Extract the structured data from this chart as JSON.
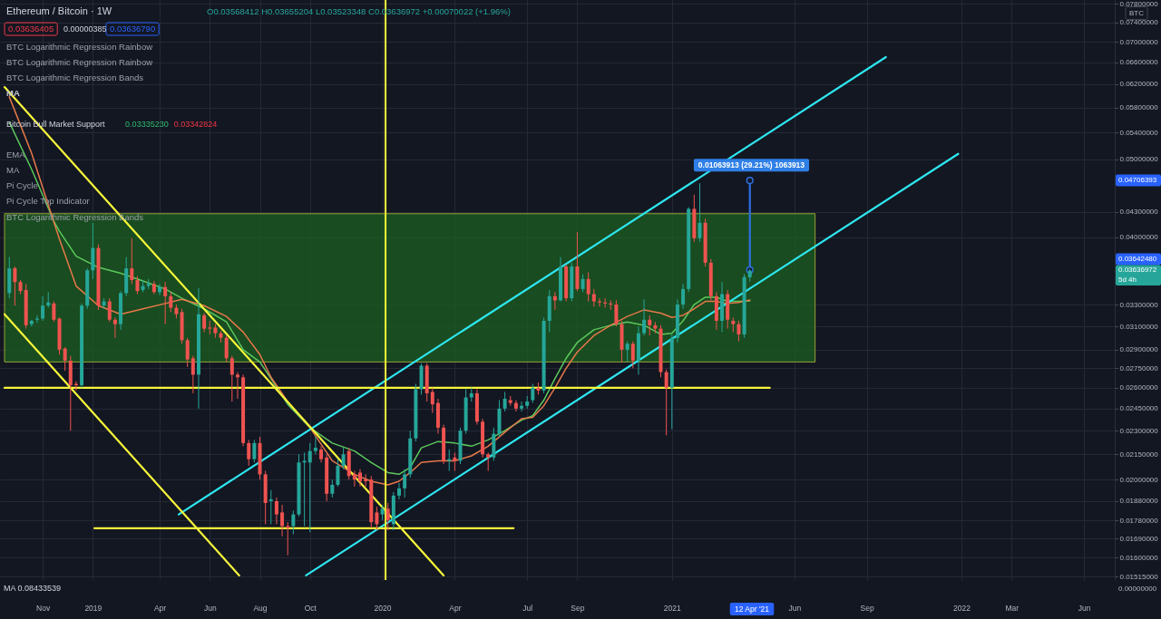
{
  "chart_data": {
    "type": "candlestick",
    "title": "Ethereum / Bitcoin · 1W",
    "x": [
      "2018-09-24",
      "2018-10-01",
      "2018-10-08",
      "2018-10-15",
      "2018-10-22",
      "2018-10-29",
      "2018-11-05",
      "2018-11-12",
      "2018-11-19",
      "2018-11-26",
      "2018-12-03",
      "2018-12-10",
      "2018-12-17",
      "2018-12-24",
      "2018-12-31",
      "2019-01-07",
      "2019-01-14",
      "2019-01-21",
      "2019-01-28",
      "2019-02-04",
      "2019-02-11",
      "2019-02-18",
      "2019-02-25",
      "2019-03-04",
      "2019-03-11",
      "2019-03-18",
      "2019-03-25",
      "2019-04-01",
      "2019-04-08",
      "2019-04-15",
      "2019-04-22",
      "2019-04-29",
      "2019-05-06",
      "2019-05-13",
      "2019-05-20",
      "2019-05-27",
      "2019-06-03",
      "2019-06-10",
      "2019-06-17",
      "2019-06-24",
      "2019-07-01",
      "2019-07-08",
      "2019-07-15",
      "2019-07-22",
      "2019-07-29",
      "2019-08-05",
      "2019-08-12",
      "2019-08-19",
      "2019-08-26",
      "2019-09-02",
      "2019-09-09",
      "2019-09-16",
      "2019-09-23",
      "2019-09-30",
      "2019-10-07",
      "2019-10-14",
      "2019-10-21",
      "2019-10-28",
      "2019-11-04",
      "2019-11-11",
      "2019-11-18",
      "2019-11-25",
      "2019-12-02",
      "2019-12-09",
      "2019-12-16",
      "2019-12-23",
      "2019-12-30",
      "2020-01-06",
      "2020-01-13",
      "2020-01-20",
      "2020-01-27",
      "2020-02-03",
      "2020-02-10",
      "2020-02-17",
      "2020-02-24",
      "2020-03-02",
      "2020-03-09",
      "2020-03-16",
      "2020-03-23",
      "2020-03-30",
      "2020-04-06",
      "2020-04-13",
      "2020-04-20",
      "2020-04-27",
      "2020-05-04",
      "2020-05-11",
      "2020-05-18",
      "2020-05-25",
      "2020-06-01",
      "2020-06-08",
      "2020-06-15",
      "2020-06-22",
      "2020-06-29",
      "2020-07-06",
      "2020-07-13",
      "2020-07-20",
      "2020-07-27",
      "2020-08-03",
      "2020-08-10",
      "2020-08-17",
      "2020-08-24",
      "2020-08-31",
      "2020-09-07",
      "2020-09-14",
      "2020-09-21",
      "2020-09-28",
      "2020-10-05",
      "2020-10-12",
      "2020-10-19",
      "2020-10-26",
      "2020-11-02",
      "2020-11-09",
      "2020-11-16",
      "2020-11-23",
      "2020-11-30",
      "2020-12-07",
      "2020-12-14",
      "2020-12-21",
      "2020-12-28",
      "2021-01-04",
      "2021-01-11",
      "2021-01-18",
      "2021-01-25",
      "2021-02-01",
      "2021-02-08",
      "2021-02-15",
      "2021-02-22",
      "2021-03-01",
      "2021-03-08",
      "2021-03-15",
      "2021-03-22",
      "2021-03-29",
      "2021-04-05",
      "2021-04-12"
    ],
    "ohlc": [
      [
        0.0341,
        0.0378,
        0.0336,
        0.0366
      ],
      [
        0.0366,
        0.0368,
        0.0329,
        0.0352
      ],
      [
        0.0352,
        0.0354,
        0.034,
        0.0343
      ],
      [
        0.0344,
        0.035,
        0.0308,
        0.0311
      ],
      [
        0.0312,
        0.0316,
        0.031,
        0.0315
      ],
      [
        0.0316,
        0.032,
        0.0313,
        0.0317
      ],
      [
        0.0317,
        0.0338,
        0.0315,
        0.0329
      ],
      [
        0.0329,
        0.0342,
        0.0327,
        0.0332
      ],
      [
        0.0331,
        0.0333,
        0.0314,
        0.0316
      ],
      [
        0.0317,
        0.0318,
        0.0286,
        0.029
      ],
      [
        0.0291,
        0.0292,
        0.0273,
        0.0281
      ],
      [
        0.0281,
        0.0285,
        0.023,
        0.0262
      ],
      [
        0.0263,
        0.0265,
        0.0258,
        0.0262
      ],
      [
        0.0262,
        0.0331,
        0.026,
        0.0329
      ],
      [
        0.0329,
        0.0366,
        0.0326,
        0.0364
      ],
      [
        0.0364,
        0.0417,
        0.0355,
        0.0388
      ],
      [
        0.0388,
        0.0392,
        0.0325,
        0.0329
      ],
      [
        0.0329,
        0.0336,
        0.0326,
        0.0333
      ],
      [
        0.0333,
        0.0336,
        0.0314,
        0.0316
      ],
      [
        0.0316,
        0.0318,
        0.03,
        0.0312
      ],
      [
        0.0312,
        0.0343,
        0.0307,
        0.0341
      ],
      [
        0.0341,
        0.0378,
        0.0338,
        0.0366
      ],
      [
        0.0366,
        0.0399,
        0.035,
        0.0354
      ],
      [
        0.0354,
        0.0358,
        0.034,
        0.0343
      ],
      [
        0.0344,
        0.0354,
        0.0342,
        0.0348
      ],
      [
        0.0348,
        0.0355,
        0.0345,
        0.035
      ],
      [
        0.035,
        0.0353,
        0.034,
        0.0342
      ],
      [
        0.0342,
        0.035,
        0.0339,
        0.0347
      ],
      [
        0.0347,
        0.0352,
        0.0312,
        0.0338
      ],
      [
        0.0338,
        0.0342,
        0.0323,
        0.0327
      ],
      [
        0.0327,
        0.033,
        0.0317,
        0.0321
      ],
      [
        0.0323,
        0.0326,
        0.0295,
        0.0298
      ],
      [
        0.0298,
        0.03,
        0.0276,
        0.0282
      ],
      [
        0.0283,
        0.0285,
        0.0256,
        0.027
      ],
      [
        0.027,
        0.0346,
        0.0245,
        0.0321
      ],
      [
        0.032,
        0.0322,
        0.0305,
        0.0308
      ],
      [
        0.0309,
        0.0315,
        0.0303,
        0.0308
      ],
      [
        0.0309,
        0.0312,
        0.03,
        0.0304
      ],
      [
        0.0304,
        0.0306,
        0.0296,
        0.03
      ],
      [
        0.03,
        0.0302,
        0.028,
        0.0283
      ],
      [
        0.0283,
        0.0285,
        0.025,
        0.027
      ],
      [
        0.027,
        0.0272,
        0.0252,
        0.0268
      ],
      [
        0.0268,
        0.027,
        0.022,
        0.0222
      ],
      [
        0.0222,
        0.0224,
        0.0208,
        0.0212
      ],
      [
        0.0212,
        0.0224,
        0.021,
        0.0222
      ],
      [
        0.0222,
        0.0226,
        0.02,
        0.0203
      ],
      [
        0.0203,
        0.0205,
        0.0176,
        0.0187
      ],
      [
        0.0188,
        0.0194,
        0.0176,
        0.0189
      ],
      [
        0.0188,
        0.019,
        0.0176,
        0.0181
      ],
      [
        0.0182,
        0.0186,
        0.017,
        0.0175
      ],
      [
        0.0175,
        0.0177,
        0.0161,
        0.0174
      ],
      [
        0.0175,
        0.0183,
        0.0171,
        0.0181
      ],
      [
        0.0181,
        0.0215,
        0.018,
        0.021
      ],
      [
        0.021,
        0.0216,
        0.0175,
        0.0211
      ],
      [
        0.021,
        0.0222,
        0.0172,
        0.0217
      ],
      [
        0.0217,
        0.0226,
        0.0215,
        0.0219
      ],
      [
        0.0218,
        0.022,
        0.021,
        0.0212
      ],
      [
        0.0213,
        0.0215,
        0.0188,
        0.0192
      ],
      [
        0.0192,
        0.02,
        0.019,
        0.0197
      ],
      [
        0.0197,
        0.0212,
        0.0196,
        0.0208
      ],
      [
        0.0208,
        0.0219,
        0.0206,
        0.0215
      ],
      [
        0.0217,
        0.0219,
        0.02,
        0.0202
      ],
      [
        0.0203,
        0.0205,
        0.0196,
        0.02
      ],
      [
        0.0204,
        0.0206,
        0.0196,
        0.0199
      ],
      [
        0.02,
        0.0203,
        0.0196,
        0.0199
      ],
      [
        0.02,
        0.0202,
        0.0174,
        0.0177
      ],
      [
        0.0182,
        0.0185,
        0.0173,
        0.0176
      ],
      [
        0.0181,
        0.0186,
        0.0178,
        0.0184
      ],
      [
        0.0184,
        0.0187,
        0.0173,
        0.0178
      ],
      [
        0.0176,
        0.0193,
        0.0173,
        0.0191
      ],
      [
        0.0191,
        0.0198,
        0.0189,
        0.0195
      ],
      [
        0.0195,
        0.0206,
        0.019,
        0.0203
      ],
      [
        0.0203,
        0.023,
        0.0201,
        0.0225
      ],
      [
        0.0225,
        0.0263,
        0.0223,
        0.0259
      ],
      [
        0.0259,
        0.0279,
        0.0255,
        0.0277
      ],
      [
        0.0277,
        0.0279,
        0.025,
        0.0256
      ],
      [
        0.0257,
        0.026,
        0.0242,
        0.0248
      ],
      [
        0.0249,
        0.0252,
        0.0228,
        0.0232
      ],
      [
        0.0232,
        0.0234,
        0.0209,
        0.0211
      ],
      [
        0.0211,
        0.0218,
        0.0205,
        0.0212
      ],
      [
        0.0213,
        0.0216,
        0.0205,
        0.0211
      ],
      [
        0.0211,
        0.0232,
        0.0209,
        0.023
      ],
      [
        0.023,
        0.0259,
        0.0228,
        0.0253
      ],
      [
        0.0253,
        0.026,
        0.025,
        0.0256
      ],
      [
        0.0256,
        0.0259,
        0.0234,
        0.0236
      ],
      [
        0.0236,
        0.0238,
        0.0213,
        0.0215
      ],
      [
        0.0215,
        0.0216,
        0.0205,
        0.0213
      ],
      [
        0.0213,
        0.0232,
        0.0211,
        0.0228
      ],
      [
        0.0228,
        0.0251,
        0.0226,
        0.0245
      ],
      [
        0.0245,
        0.0257,
        0.0243,
        0.0252
      ],
      [
        0.0251,
        0.0254,
        0.0247,
        0.0249
      ],
      [
        0.0249,
        0.0251,
        0.0243,
        0.0245
      ],
      [
        0.0245,
        0.025,
        0.0243,
        0.0247
      ],
      [
        0.0247,
        0.0254,
        0.0245,
        0.025
      ],
      [
        0.0251,
        0.0263,
        0.0249,
        0.026
      ],
      [
        0.026,
        0.0264,
        0.0255,
        0.0258
      ],
      [
        0.0258,
        0.0318,
        0.0256,
        0.0315
      ],
      [
        0.0315,
        0.0344,
        0.0305,
        0.0338
      ],
      [
        0.0338,
        0.0342,
        0.0325,
        0.0334
      ],
      [
        0.0334,
        0.0378,
        0.0333,
        0.0368
      ],
      [
        0.0368,
        0.037,
        0.0333,
        0.0336
      ],
      [
        0.0336,
        0.0372,
        0.0333,
        0.0368
      ],
      [
        0.0368,
        0.0406,
        0.0343,
        0.0345
      ],
      [
        0.0345,
        0.036,
        0.0342,
        0.0355
      ],
      [
        0.0355,
        0.0362,
        0.0333,
        0.034
      ],
      [
        0.034,
        0.0345,
        0.0328,
        0.0333
      ],
      [
        0.0333,
        0.0336,
        0.0328,
        0.0332
      ],
      [
        0.0332,
        0.0336,
        0.0327,
        0.0331
      ],
      [
        0.0331,
        0.0334,
        0.0325,
        0.033
      ],
      [
        0.033,
        0.0334,
        0.031,
        0.0312
      ],
      [
        0.0312,
        0.0315,
        0.028,
        0.029
      ],
      [
        0.029,
        0.0297,
        0.028,
        0.0295
      ],
      [
        0.0295,
        0.0297,
        0.0275,
        0.0281
      ],
      [
        0.0281,
        0.031,
        0.027,
        0.0304
      ],
      [
        0.0304,
        0.0335,
        0.0302,
        0.0316
      ],
      [
        0.0316,
        0.032,
        0.0302,
        0.0311
      ],
      [
        0.0311,
        0.0314,
        0.0304,
        0.0308
      ],
      [
        0.0308,
        0.0311,
        0.0268,
        0.0272
      ],
      [
        0.0272,
        0.0274,
        0.0227,
        0.026
      ],
      [
        0.026,
        0.0303,
        0.0231,
        0.03
      ],
      [
        0.03,
        0.0335,
        0.0296,
        0.033
      ],
      [
        0.033,
        0.035,
        0.0326,
        0.0345
      ],
      [
        0.0345,
        0.0436,
        0.0342,
        0.0434
      ],
      [
        0.0434,
        0.0452,
        0.0395,
        0.0399
      ],
      [
        0.0399,
        0.0467,
        0.0395,
        0.0417
      ],
      [
        0.0417,
        0.0422,
        0.0368,
        0.0372
      ],
      [
        0.0372,
        0.0376,
        0.0334,
        0.0338
      ],
      [
        0.0338,
        0.0342,
        0.0307,
        0.0315
      ],
      [
        0.0315,
        0.0352,
        0.0305,
        0.034
      ],
      [
        0.034,
        0.0344,
        0.0308,
        0.0316
      ],
      [
        0.0315,
        0.0318,
        0.0305,
        0.0312
      ],
      [
        0.0312,
        0.0315,
        0.0297,
        0.0303
      ],
      [
        0.0303,
        0.036,
        0.03,
        0.0357
      ],
      [
        0.03568412,
        0.03655204,
        0.03523348,
        0.03636972
      ]
    ],
    "colors": [
      "#26a69a",
      "#ef5350",
      "#ef5350",
      "#ef5350",
      "#26a69a",
      "#26a69a",
      "#26a69a",
      "#26a69a",
      "#ef5350",
      "#ef5350",
      "#ef5350",
      "#ef5350",
      "#ef5350",
      "#26a69a",
      "#26a69a",
      "#26a69a",
      "#ef5350",
      "#26a69a",
      "#ef5350",
      "#ef5350",
      "#26a69a",
      "#26a69a",
      "#ef5350",
      "#ef5350",
      "#26a69a",
      "#26a69a",
      "#ef5350",
      "#26a69a",
      "#ef5350",
      "#ef5350",
      "#ef5350",
      "#ef5350",
      "#ef5350",
      "#ef5350",
      "#26a69a",
      "#ef5350",
      "#ef5350",
      "#ef5350",
      "#ef5350",
      "#ef5350",
      "#ef5350",
      "#ef5350",
      "#ef5350",
      "#ef5350",
      "#26a69a",
      "#ef5350",
      "#ef5350",
      "#26a69a",
      "#ef5350",
      "#ef5350",
      "#ef5350",
      "#26a69a",
      "#26a69a",
      "#26a69a",
      "#26a69a",
      "#26a69a",
      "#ef5350",
      "#ef5350",
      "#26a69a",
      "#26a69a",
      "#26a69a",
      "#ef5350",
      "#ef5350",
      "#ef5350",
      "#ef5350",
      "#ef5350",
      "#ef5350",
      "#26a69a",
      "#ef5350",
      "#26a69a",
      "#26a69a",
      "#26a69a",
      "#26a69a",
      "#26a69a",
      "#26a69a",
      "#ef5350",
      "#ef5350",
      "#ef5350",
      "#ef5350",
      "#26a69a",
      "#ef5350",
      "#26a69a",
      "#26a69a",
      "#26a69a",
      "#ef5350",
      "#ef5350",
      "#ef5350",
      "#26a69a",
      "#26a69a",
      "#26a69a",
      "#ef5350",
      "#ef5350",
      "#26a69a",
      "#26a69a",
      "#26a69a",
      "#ef5350",
      "#26a69a",
      "#26a69a",
      "#ef5350",
      "#26a69a",
      "#ef5350",
      "#26a69a",
      "#ef5350",
      "#26a69a",
      "#ef5350",
      "#ef5350",
      "#ef5350",
      "#ef5350",
      "#ef5350",
      "#ef5350",
      "#ef5350",
      "#26a69a",
      "#ef5350",
      "#26a69a",
      "#26a69a",
      "#ef5350",
      "#ef5350",
      "#ef5350",
      "#ef5350",
      "#26a69a",
      "#26a69a",
      "#26a69a",
      "#26a69a",
      "#ef5350",
      "#26a69a",
      "#ef5350",
      "#ef5350",
      "#ef5350",
      "#26a69a",
      "#ef5350",
      "#ef5350",
      "#ef5350",
      "#26a69a",
      "#26a69a"
    ],
    "series": [
      {
        "type": "line",
        "x": [
          "2018-09-18",
          "2021-07-03"
        ],
        "values": [
          null,
          null
        ],
        "lower": [
          0.028,
          0.028
        ],
        "upper": [
          0.0428,
          0.0428
        ],
        "color": "#1b5e20"
      },
      {
        "type": "line",
        "x": [
          "2018-09-24",
          "2018-10-22",
          "2018-11-19",
          "2018-11-26",
          "2018-12-17",
          "2019-01-14",
          "2019-02-11",
          "2019-03-11",
          "2019-04-08",
          "2019-04-29",
          "2019-05-27",
          "2019-06-24",
          "2019-07-15",
          "2019-08-05",
          "2019-08-19",
          "2019-09-09",
          "2019-10-07",
          "2019-11-04",
          "2019-12-02",
          "2019-12-23",
          "2020-01-13",
          "2020-01-27",
          "2020-02-10",
          "2020-02-24",
          "2020-03-16",
          "2020-04-06",
          "2020-04-27",
          "2020-05-18",
          "2020-06-08",
          "2020-06-29",
          "2020-07-13",
          "2020-07-27",
          "2020-08-10",
          "2020-08-24",
          "2020-09-07",
          "2020-09-28",
          "2020-10-19",
          "2020-11-09",
          "2020-11-30",
          "2020-12-21",
          "2021-01-04",
          "2021-01-18",
          "2021-02-01",
          "2021-02-15",
          "2021-03-01",
          "2021-03-15",
          "2021-03-29",
          "2021-04-12"
        ],
        "values": [
          0.0556,
          0.0486,
          0.0419,
          0.0407,
          0.0379,
          0.0367,
          0.0361,
          0.0353,
          0.0345,
          0.0336,
          0.0326,
          0.0314,
          0.029,
          0.028,
          0.0267,
          0.0248,
          0.0232,
          0.0222,
          0.0217,
          0.021,
          0.0204,
          0.0203,
          0.0207,
          0.0219,
          0.0223,
          0.0222,
          0.022,
          0.0224,
          0.023,
          0.0237,
          0.024,
          0.0251,
          0.0267,
          0.0283,
          0.0296,
          0.0307,
          0.0311,
          0.0314,
          0.0311,
          0.0303,
          0.0304,
          0.0315,
          0.033,
          0.0337,
          0.0337,
          0.0333,
          0.0333,
          0.0333523
        ],
        "color": "#5cc85c"
      },
      {
        "type": "line",
        "x": [
          "2018-09-24",
          "2018-10-22",
          "2018-11-19",
          "2018-11-26",
          "2018-12-17",
          "2019-01-14",
          "2019-02-11",
          "2019-03-11",
          "2019-04-08",
          "2019-04-29",
          "2019-05-27",
          "2019-06-24",
          "2019-07-15",
          "2019-08-05",
          "2019-08-19",
          "2019-09-09",
          "2019-10-07",
          "2019-11-04",
          "2019-12-02",
          "2019-12-23",
          "2020-01-13",
          "2020-01-27",
          "2020-02-10",
          "2020-02-24",
          "2020-03-16",
          "2020-04-06",
          "2020-04-27",
          "2020-05-18",
          "2020-06-08",
          "2020-06-29",
          "2020-07-13",
          "2020-07-27",
          "2020-08-10",
          "2020-08-24",
          "2020-09-07",
          "2020-09-28",
          "2020-10-19",
          "2020-11-09",
          "2020-11-30",
          "2020-12-21",
          "2021-01-04",
          "2021-01-18",
          "2021-02-01",
          "2021-02-15",
          "2021-03-01",
          "2021-03-15",
          "2021-03-29",
          "2021-04-12"
        ],
        "values": [
          0.0598,
          0.0509,
          0.0418,
          0.0398,
          0.0348,
          0.0329,
          0.0321,
          0.0326,
          0.0331,
          0.0335,
          0.0329,
          0.0319,
          0.0305,
          0.0286,
          0.0268,
          0.025,
          0.0232,
          0.0211,
          0.0203,
          0.0199,
          0.0197,
          0.0199,
          0.0204,
          0.021,
          0.0211,
          0.0211,
          0.0214,
          0.022,
          0.0229,
          0.0238,
          0.0239,
          0.0247,
          0.026,
          0.0275,
          0.0288,
          0.0302,
          0.0311,
          0.0319,
          0.0325,
          0.0322,
          0.0318,
          0.032,
          0.0326,
          0.0333,
          0.0333,
          0.0331,
          0.0332,
          0.03342824
        ],
        "color": "#e7784a"
      },
      {
        "type": "line",
        "x": [
          "2019-04-25",
          "2021-09-30"
        ],
        "values": [
          0.0181,
          0.067
        ],
        "color": "#2ee6f0"
      },
      {
        "type": "line",
        "x": [
          "2019-10-02",
          "2021-12-30"
        ],
        "values": [
          0.0152,
          0.0508
        ],
        "color": "#2ee6f0"
      },
      {
        "type": "line",
        "x": [
          "2018-09-18",
          "2020-03-23"
        ],
        "values": [
          0.0615,
          0.0152
        ],
        "color": "#f7f73a"
      },
      {
        "type": "line",
        "x": [
          "2018-09-18",
          "2019-07-10"
        ],
        "values": [
          0.0321,
          0.0152
        ],
        "color": "#f7f73a"
      },
      {
        "type": "line",
        "x": [
          "2018-09-18",
          "2021-05-07"
        ],
        "values": [
          0.026,
          0.026
        ],
        "color": "#f7f73a"
      },
      {
        "type": "line",
        "x": [
          "2019-01-09",
          "2020-06-19"
        ],
        "values": [
          0.0174,
          0.0174
        ],
        "color": "#f7f73a"
      },
      {
        "type": "line",
        "x": [
          "2021-04-12",
          "2021-04-12"
        ],
        "values": [
          0.0364248,
          0.04706393
        ],
        "color": "#2f6fe0",
        "marker": "circle"
      }
    ],
    "ref_lines": [
      {
        "axis": "x",
        "value": "2020-01-10",
        "color": "#f7f73a"
      }
    ],
    "xlim": [
      "2018-09-18",
      "2022-07-09"
    ],
    "ylim": [
      0.015,
      0.0789
    ],
    "log": true,
    "grid": true,
    "xticks": [
      {
        "value": "2018-11-05",
        "label": "Nov"
      },
      {
        "value": "2019-01-07",
        "label": "2019"
      },
      {
        "value": "2019-04-01",
        "label": "Apr"
      },
      {
        "value": "2019-06-03",
        "label": "Jun"
      },
      {
        "value": "2019-08-05",
        "label": "Aug"
      },
      {
        "value": "2019-10-07",
        "label": "Oct"
      },
      {
        "value": "2020-01-06",
        "label": "2020"
      },
      {
        "value": "2020-04-06",
        "label": "Apr"
      },
      {
        "value": "2020-07-06",
        "label": "Jul"
      },
      {
        "value": "2020-09-07",
        "label": "Sep"
      },
      {
        "value": "2021-01-04",
        "label": "2021"
      },
      {
        "value": "2021-06-07",
        "label": "Jun"
      },
      {
        "value": "2021-09-06",
        "label": "Sep"
      },
      {
        "value": "2022-01-03",
        "label": "2022"
      },
      {
        "value": "2022-03-07",
        "label": "Mar"
      },
      {
        "value": "2022-06-06",
        "label": "Jun"
      }
    ],
    "yticks": [
      {
        "value": 0.01515,
        "label": "0.01515000"
      },
      {
        "value": 0.016,
        "label": "0.01600000"
      },
      {
        "value": 0.0169,
        "label": "0.01690000"
      },
      {
        "value": 0.0178,
        "label": "0.01780000"
      },
      {
        "value": 0.0188,
        "label": "0.01880000"
      },
      {
        "value": 0.02,
        "label": "0.02000000"
      },
      {
        "value": 0.0215,
        "label": "0.02150000"
      },
      {
        "value": 0.023,
        "label": "0.02300000"
      },
      {
        "value": 0.0245,
        "label": "0.02450000"
      },
      {
        "value": 0.026,
        "label": "0.02600000"
      },
      {
        "value": 0.0275,
        "label": "0.02750000"
      },
      {
        "value": 0.029,
        "label": "0.02900000"
      },
      {
        "value": 0.031,
        "label": "0.03100000"
      },
      {
        "value": 0.033,
        "label": "0.03300000"
      },
      {
        "value": 0.04,
        "label": "0.04000000"
      },
      {
        "value": 0.043,
        "label": "0.04300000"
      },
      {
        "value": 0.05,
        "label": "0.05000000"
      },
      {
        "value": 0.054,
        "label": "0.05400000"
      },
      {
        "value": 0.058,
        "label": "0.05800000"
      },
      {
        "value": 0.062,
        "label": "0.06200000"
      },
      {
        "value": 0.066,
        "label": "0.06600000"
      },
      {
        "value": 0.07,
        "label": "0.07000000"
      },
      {
        "value": 0.074,
        "label": "0.07400000"
      },
      {
        "value": 0.078,
        "label": "0.07800000"
      }
    ],
    "annotations": [
      {
        "text": "0.01063913 (29.21%) 1063913",
        "x": "2021-04-12",
        "y": 0.04706393
      },
      "0.04706393",
      "0.03642480",
      "0.03636972",
      "12 Apr '21",
      "O0.03568412 H0.03655204 L0.03523348 C0.03636972 +0.00070022 (+1.96%)",
      "0.03636405",
      "0.00000385",
      "0.03636790",
      "BTC Logarithmic Regression Rainbow",
      "BTC Logarithmic Regression Rainbow",
      "BTC Logarithmic Regression Bands",
      "MA",
      "Bitcoin Bull Market Support",
      "0.03335230",
      "0.03342824",
      "EMA",
      "MA",
      "Pi Cycle",
      "Pi Cycle Top Indicator",
      "BTC Logarithmic Regression Bands",
      "BTC",
      "5d 4h",
      "MA 0.08433539",
      "0.00000000"
    ]
  }
}
